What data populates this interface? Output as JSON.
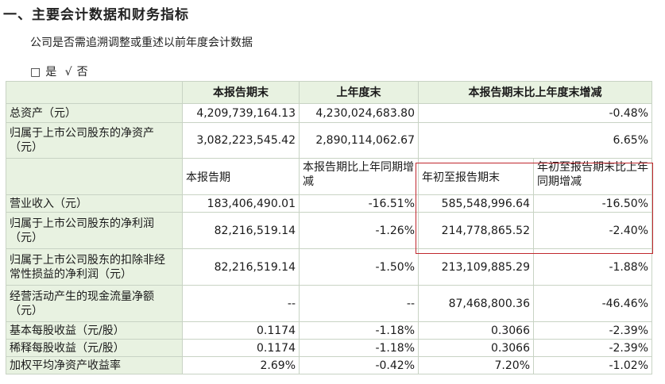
{
  "heading": "一、主要会计数据和财务指标",
  "question": "公司是否需追溯调整或重述以前年度会计数据",
  "choice": {
    "yes_box": "□",
    "yes": "是",
    "no_check": "√",
    "no": "否"
  },
  "header": [
    "",
    "本报告期末",
    "上年度末",
    "本报告期末比上年度末增减"
  ],
  "balance_rows": [
    {
      "label": "总资产（元）",
      "values": [
        "4,209,739,164.13",
        "4,230,024,683.80",
        "-0.48%"
      ]
    },
    {
      "label": "归属于上市公司股东的净资产（元）",
      "values": [
        "3,082,223,545.42",
        "2,890,114,062.67",
        "6.65%"
      ]
    }
  ],
  "sub_header": [
    "本报告期",
    "本报告期比上年同期增减",
    "年初至报告期末",
    "年初至报告期末比上年同期增减"
  ],
  "income_rows": [
    {
      "label": "营业收入（元）",
      "values": [
        "183,406,490.01",
        "-16.51%",
        "585,548,996.64",
        "-16.50%"
      ]
    },
    {
      "label": "归属于上市公司股东的净利润（元）",
      "values": [
        "82,216,519.14",
        "-1.26%",
        "214,778,865.52",
        "-2.40%"
      ]
    },
    {
      "label": "归属于上市公司股东的扣除非经 常性损益的净利润（元）",
      "values": [
        "82,216,519.14",
        "-1.50%",
        "213,109,885.29",
        "-1.88%"
      ]
    },
    {
      "label": "经营活动产生的现金流量净额（元）",
      "values": [
        "--",
        "--",
        "87,468,800.36",
        "-46.46%"
      ]
    },
    {
      "label": "基本每股收益（元/股）",
      "values": [
        "0.1174",
        "-1.18%",
        "0.3066",
        "-2.39%"
      ]
    },
    {
      "label": "稀释每股收益（元/股）",
      "values": [
        "0.1174",
        "-1.18%",
        "0.3066",
        "-2.39%"
      ]
    },
    {
      "label": "加权平均净资产收益率",
      "values": [
        "2.69%",
        "-0.42%",
        "7.20%",
        "-1.02%"
      ]
    }
  ],
  "colors": {
    "header_bg": "#e8f2e1",
    "border": "#c8d3c4",
    "highlight": "#c0282e"
  }
}
